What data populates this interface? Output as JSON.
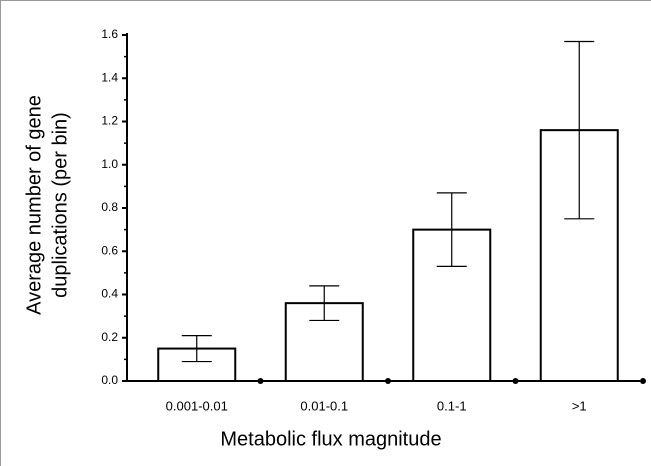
{
  "chart_data": {
    "type": "bar",
    "xlabel": "Metabolic flux magnitude",
    "ylabel": [
      "Average number of gene",
      "duplications (per bin)"
    ],
    "categories": [
      "0.001-0.01",
      "0.01-0.1",
      "0.1-1",
      ">1"
    ],
    "values": [
      0.15,
      0.36,
      0.7,
      1.16
    ],
    "errors": [
      0.06,
      0.08,
      0.17,
      0.41
    ],
    "color": "#ffffff",
    "ylim": [
      0,
      1.6
    ],
    "yticks": [
      {
        "value": 0,
        "label": "0.0"
      },
      0.2,
      0.4,
      0.6,
      0.8,
      {
        "value": 1,
        "label": "1.0"
      },
      1.2,
      1.4,
      1.6
    ],
    "grid": false
  }
}
